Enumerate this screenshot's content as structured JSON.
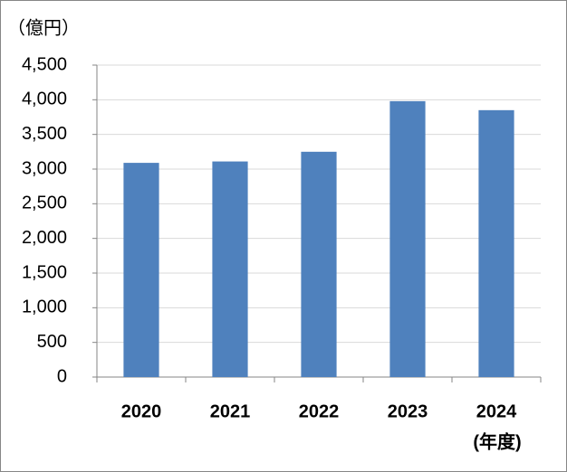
{
  "chart_data": {
    "type": "bar",
    "y_axis_label": "（億円）",
    "x_axis_label": "(年度)",
    "categories": [
      "2020",
      "2021",
      "2022",
      "2023",
      "2024"
    ],
    "values": [
      3090,
      3110,
      3250,
      3980,
      3850
    ],
    "color": "#4f81bd",
    "ylim": [
      0,
      4500
    ],
    "yticks": [
      0,
      500,
      {
        "value": 1000,
        "label": "1,000"
      },
      {
        "value": 1500,
        "label": "1,500"
      },
      {
        "value": 2000,
        "label": "2,000"
      },
      {
        "value": 2500,
        "label": "2,500"
      },
      {
        "value": 3000,
        "label": "3,000"
      },
      {
        "value": 3500,
        "label": "3,500"
      },
      {
        "value": 4000,
        "label": "4,000"
      },
      {
        "value": 4500,
        "label": "4,500"
      }
    ],
    "grid": true
  }
}
